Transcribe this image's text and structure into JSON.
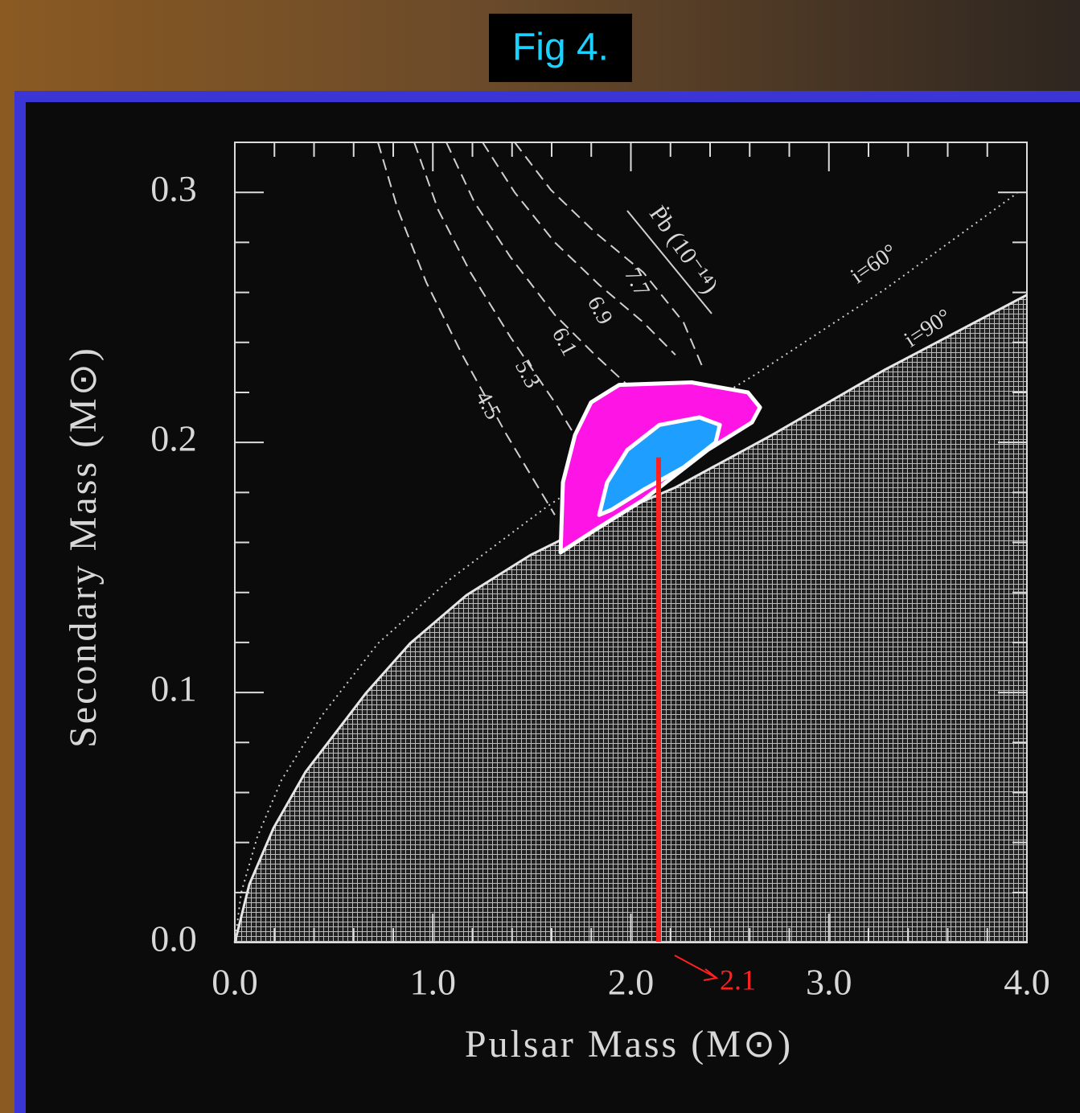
{
  "chart_data": {
    "type": "line",
    "title": "Fig 4.",
    "xlabel": "Pulsar Mass (M⊙)",
    "ylabel": "Secondary Mass (M⊙)",
    "curve_group_label": "Ṗb (10⁻¹⁴)",
    "xlim": [
      0,
      4
    ],
    "ylim": [
      0,
      0.32
    ],
    "xticks": [
      {
        "value": 0,
        "label": "0.0"
      },
      {
        "value": 1,
        "label": "1.0"
      },
      {
        "value": 2,
        "label": "2.0"
      },
      {
        "value": 3,
        "label": "3.0"
      },
      {
        "value": 4,
        "label": "4.0"
      }
    ],
    "yticks": [
      {
        "value": 0,
        "label": "0.0"
      },
      0.1,
      0.2,
      0.3
    ],
    "xminorticks": [
      0.2,
      0.4,
      0.6,
      0.8,
      1.2,
      1.4,
      1.6,
      1.8,
      2.2,
      2.4,
      2.6,
      2.8,
      3.2,
      3.4,
      3.6,
      3.8
    ],
    "yminorticks": [
      0.02,
      0.04,
      0.06,
      0.08,
      0.12,
      0.14,
      0.16,
      0.18,
      0.22,
      0.24,
      0.26,
      0.28
    ],
    "series": [
      {
        "name": "i=90°",
        "color": "#e6e6e6",
        "style": "solid",
        "fill": "hatch",
        "x": [
          0,
          0.073,
          0.195,
          0.357,
          0.662,
          0.885,
          1.17,
          1.494,
          1.901,
          2.225,
          2.713,
          3.281,
          4.0
        ],
        "values": [
          0,
          0.0232,
          0.0457,
          0.0682,
          0.0997,
          0.1196,
          0.1389,
          0.155,
          0.171,
          0.182,
          0.203,
          0.229,
          0.259
        ]
      },
      {
        "name": "i=60°",
        "color": "#d0d0d0",
        "style": "dotted",
        "x": [
          0,
          0.032,
          0.114,
          0.236,
          0.439,
          0.723,
          1.088,
          1.576,
          2.063,
          2.632,
          3.281,
          3.951
        ],
        "values": [
          0,
          0.0199,
          0.0424,
          0.065,
          0.0907,
          0.1196,
          0.1453,
          0.1743,
          0.2,
          0.2273,
          0.2611,
          0.2997
        ]
      },
      {
        "name": "4.5",
        "color": "#d0d0d0",
        "style": "dashed",
        "x": [
          0.723,
          0.824,
          0.967,
          1.149,
          1.373,
          1.616
        ],
        "values": [
          0.32,
          0.293,
          0.264,
          0.235,
          0.203,
          0.171
        ]
      },
      {
        "name": "5.3",
        "color": "#d0d0d0",
        "style": "dashed",
        "x": [
          0.906,
          1.027,
          1.19,
          1.393,
          1.616,
          1.738
        ],
        "values": [
          0.32,
          0.293,
          0.268,
          0.242,
          0.216,
          0.2
        ]
      },
      {
        "name": "6.1",
        "color": "#d0d0d0",
        "style": "dashed",
        "x": [
          1.068,
          1.21,
          1.393,
          1.616,
          1.819,
          1.982
        ],
        "values": [
          0.32,
          0.296,
          0.274,
          0.251,
          0.235,
          0.223
        ]
      },
      {
        "name": "6.9",
        "color": "#d0d0d0",
        "style": "dashed",
        "x": [
          1.251,
          1.413,
          1.616,
          1.84,
          2.063,
          2.225
        ],
        "values": [
          0.32,
          0.3,
          0.28,
          0.263,
          0.248,
          0.235
        ]
      },
      {
        "name": "7.7",
        "color": "#d0d0d0",
        "style": "dashed",
        "x": [
          1.413,
          1.596,
          1.819,
          2.063,
          2.266,
          2.368
        ],
        "values": [
          0.32,
          0.301,
          0.284,
          0.268,
          0.248,
          0.229
        ]
      }
    ],
    "regions": [
      {
        "color": "#ff14e6",
        "x": [
          1.645,
          1.657,
          1.718,
          1.799,
          1.941,
          2.307,
          2.591,
          2.652,
          2.611,
          2.388,
          2.063,
          1.819
        ],
        "values": [
          0.156,
          0.184,
          0.203,
          0.216,
          0.223,
          0.224,
          0.22,
          0.214,
          0.208,
          0.197,
          0.177,
          0.165
        ]
      },
      {
        "color": "#1e9fff",
        "x": [
          1.84,
          1.88,
          1.982,
          2.144,
          2.347,
          2.449,
          2.428,
          2.266,
          2.063,
          1.901
        ],
        "values": [
          0.171,
          0.184,
          0.197,
          0.207,
          0.21,
          0.207,
          0.2,
          0.19,
          0.181,
          0.173
        ]
      }
    ],
    "marker": {
      "x": 2.14,
      "y": 0.194,
      "label": "2.1",
      "color": "#ff2020"
    }
  }
}
